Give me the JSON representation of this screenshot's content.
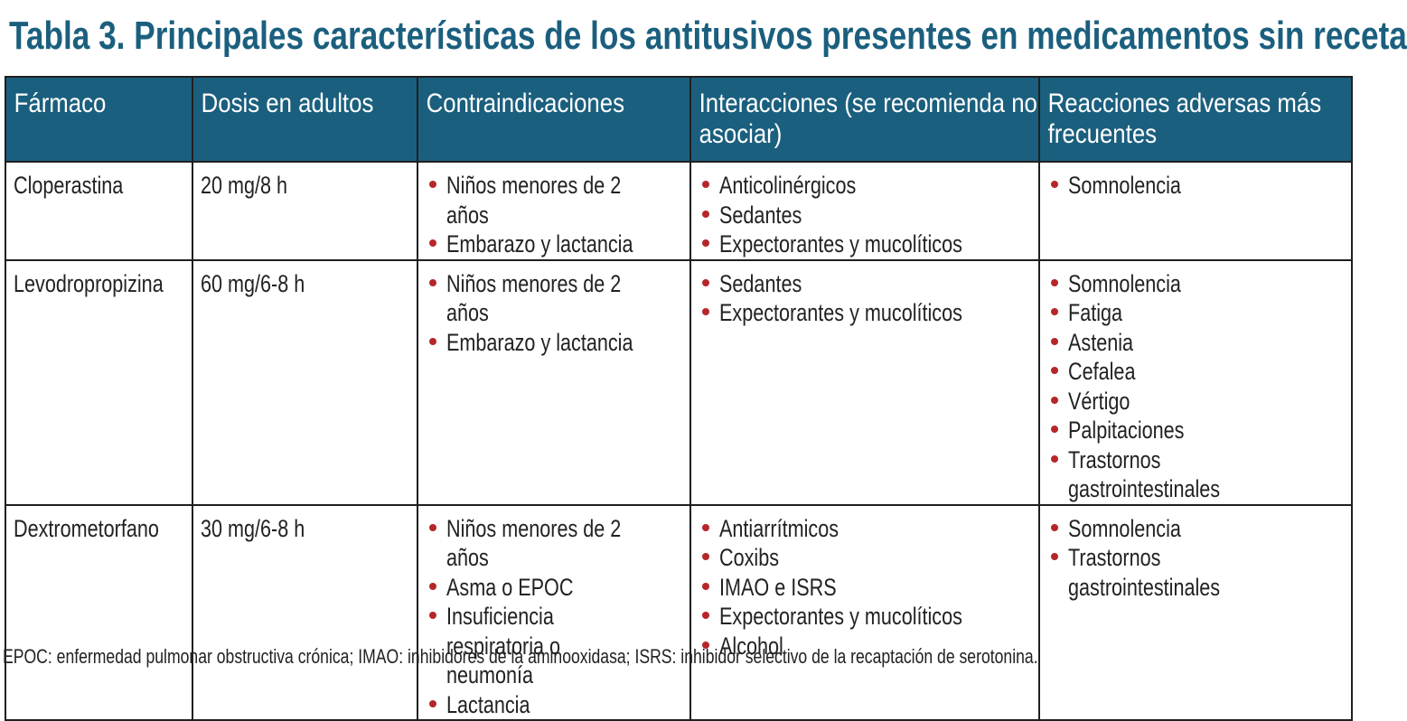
{
  "title": "Tabla 3. Principales características de los antitusivos presentes en medicamentos sin receta",
  "headers": [
    "Fármaco",
    "Dosis en adultos",
    "Contraindicaciones",
    "Interacciones (se recomienda no asociar)",
    "Reacciones adversas más frecuentes"
  ],
  "rows": [
    {
      "drug": "Cloperastina",
      "dose": "20 mg/8 h",
      "contraindications": [
        "Niños menores de 2 años",
        "Embarazo y lactancia"
      ],
      "interactions": [
        "Anticolinérgicos",
        "Sedantes",
        "Expectorantes y mucolíticos"
      ],
      "adverse": [
        "Somnolencia"
      ]
    },
    {
      "drug": "Levodropropizina",
      "dose": "60 mg/6-8 h",
      "contraindications": [
        "Niños menores de 2 años",
        "Embarazo y lactancia"
      ],
      "interactions": [
        "Sedantes",
        "Expectorantes y mucolíticos"
      ],
      "adverse": [
        "Somnolencia",
        "Fatiga",
        "Astenia",
        "Cefalea",
        "Vértigo",
        "Palpitaciones",
        "Trastornos gastrointestinales"
      ]
    },
    {
      "drug": "Dextrometorfano",
      "dose": "30 mg/6-8 h",
      "contraindications": [
        "Niños menores de 2 años",
        "Asma o EPOC",
        "Insuficiencia respiratoria o neumonía",
        "Lactancia"
      ],
      "interactions": [
        "Antiarrítmicos",
        "Coxibs",
        "IMAO e ISRS",
        "Expectorantes y mucolíticos",
        "Alcohol"
      ],
      "adverse": [
        "Somnolencia",
        "Trastornos gastrointestinales"
      ]
    }
  ],
  "footnote": "EPOC: enfermedad pulmonar obstructiva crónica; IMAO: inhibidores de la aminooxidasa; ISRS: inhibidor selectivo de la recaptación de serotonina.",
  "colors": {
    "header_bg": "#1b5f7e",
    "title": "#1b5f7e",
    "bullet": "#b5262a",
    "text": "#222222"
  }
}
